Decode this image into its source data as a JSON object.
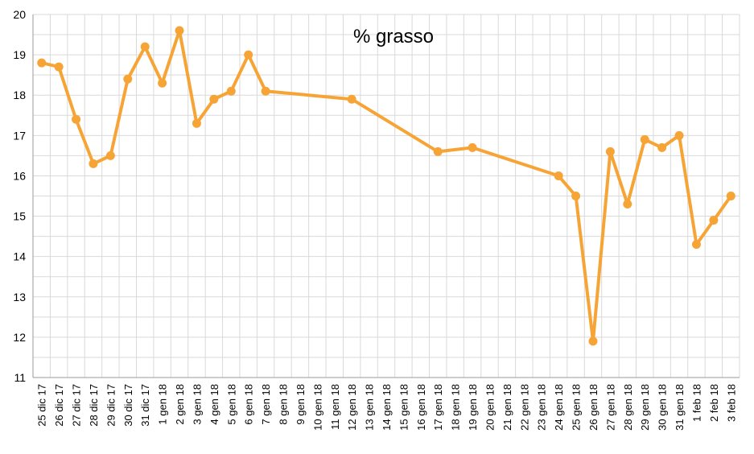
{
  "colors": {
    "series": "#f7a436",
    "grid": "#d9d9d9",
    "background": "#ffffff"
  },
  "chart_data": {
    "type": "line",
    "title": "% grasso",
    "xlabel": "",
    "ylabel": "",
    "ylim": [
      11,
      20
    ],
    "yticks": [
      11,
      12,
      13,
      14,
      15,
      16,
      17,
      18,
      19,
      20
    ],
    "grid": true,
    "legend": "none",
    "categories": [
      "25 dic 17",
      "26 dic 17",
      "27 dic 17",
      "28 dic 17",
      "29 dic 17",
      "30 dic 17",
      "31 dic 17",
      "1 gen 18",
      "2 gen 18",
      "3 gen 18",
      "4 gen 18",
      "5 gen 18",
      "6 gen 18",
      "7 gen 18",
      "8 gen 18",
      "9 gen 18",
      "10 gen 18",
      "11 gen 18",
      "12 gen 18",
      "13 gen 18",
      "14 gen 18",
      "15 gen 18",
      "16 gen 18",
      "17 gen 18",
      "18 gen 18",
      "19 gen 18",
      "20 gen 18",
      "21 gen 18",
      "22 gen 18",
      "23 gen 18",
      "24 gen 18",
      "25 gen 18",
      "26 gen 18",
      "27 gen 18",
      "28 gen 18",
      "29 gen 18",
      "30 gen 18",
      "31 gen 18",
      "1 feb 18",
      "2 feb 18",
      "3 feb 18"
    ],
    "series": [
      {
        "name": "",
        "values": [
          18.8,
          18.7,
          17.4,
          16.3,
          16.5,
          18.4,
          19.2,
          18.3,
          19.6,
          17.3,
          17.9,
          18.1,
          19.0,
          18.1,
          null,
          null,
          null,
          null,
          17.9,
          null,
          null,
          null,
          null,
          16.6,
          null,
          16.7,
          null,
          null,
          null,
          null,
          16.0,
          15.5,
          11.9,
          16.6,
          15.3,
          16.9,
          16.7,
          17.0,
          14.3,
          14.9,
          15.5
        ]
      }
    ]
  }
}
